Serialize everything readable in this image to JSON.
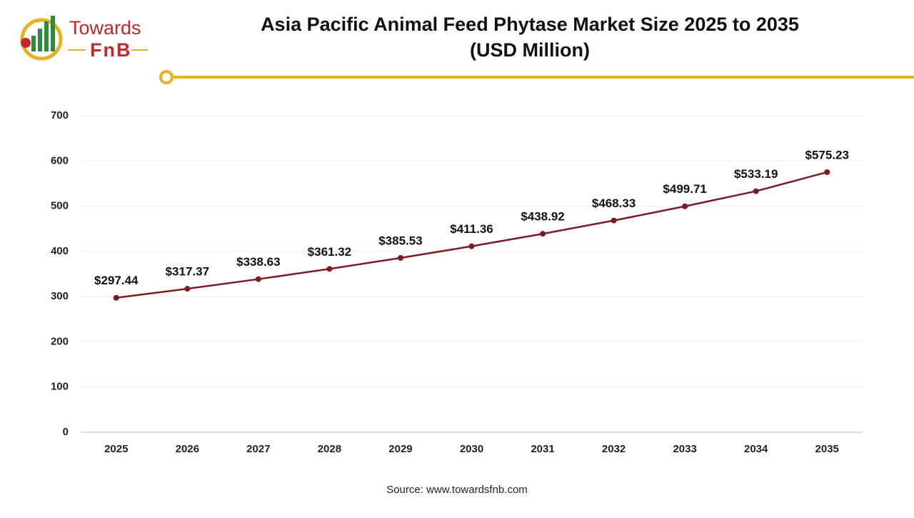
{
  "logo": {
    "line1": "Towards",
    "line2": "FnB"
  },
  "chart_data": {
    "type": "line",
    "title": "Asia Pacific Animal Feed Phytase Market Size 2025 to 2035",
    "subtitle": "(USD Million)",
    "categories": [
      "2025",
      "2026",
      "2027",
      "2028",
      "2029",
      "2030",
      "2031",
      "2032",
      "2033",
      "2034",
      "2035"
    ],
    "values": [
      297.44,
      317.37,
      338.63,
      361.32,
      385.53,
      411.36,
      438.92,
      468.33,
      499.71,
      533.19,
      575.23
    ],
    "value_labels": [
      "$297.44",
      "$317.37",
      "$338.63",
      "$361.32",
      "$385.53",
      "$411.36",
      "$438.92",
      "$468.33",
      "$499.71",
      "$533.19",
      "$575.23"
    ],
    "color": "#7b1c24",
    "ylim": [
      0,
      700
    ],
    "yticks": [
      0,
      100,
      200,
      300,
      400,
      500,
      600,
      700
    ],
    "grid": true,
    "source": "Source: www.towardsfnb.com"
  }
}
